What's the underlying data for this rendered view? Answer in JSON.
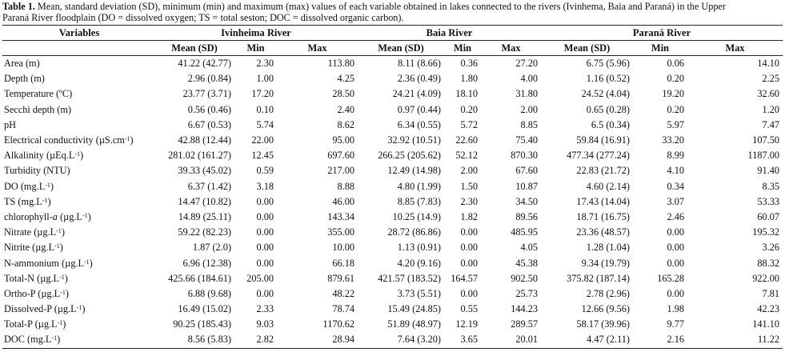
{
  "caption": {
    "label": "Table 1.",
    "text_line1": " Mean, standard deviation (SD), minimum (min) and maximum (max) values of each variable obtained in lakes connected to the rivers (Ivinhema, Baia and Paraná) in the Upper",
    "text_line2": "Paraná River floodplain (DO = dissolved oxygen; TS = total seston; DOC = dissolved organic carbon)."
  },
  "header": {
    "variables": "Variables",
    "rivers": [
      "Ivinheima River",
      "Baia River",
      "Paraná River"
    ],
    "mean_sd": "Mean (SD)",
    "min": "Min",
    "max": "Max"
  },
  "rows": [
    {
      "label": "Area (m)",
      "unit_sup": "",
      "ivinheima": {
        "mean_sd": "41.22 (42.77)",
        "min": "2.30",
        "max": "113.80"
      },
      "baia": {
        "mean_sd": "8.11 (8.66)",
        "min": "0.36",
        "max": "27.20"
      },
      "parana": {
        "mean_sd": "6.75 (5.96)",
        "min": "0.06",
        "max": "14.10"
      }
    },
    {
      "label": "Depth (m)",
      "unit_sup": "",
      "ivinheima": {
        "mean_sd": "2.96 (0.84)",
        "min": "1.00",
        "max": "4.25"
      },
      "baia": {
        "mean_sd": "2.36 (0.49)",
        "min": "1.80",
        "max": "4.00"
      },
      "parana": {
        "mean_sd": "1.16 (0.52)",
        "min": "0.20",
        "max": "2.25"
      }
    },
    {
      "label": "Temperature (ºC)",
      "unit_sup": "",
      "ivinheima": {
        "mean_sd": "23.77 (3.71)",
        "min": "17.20",
        "max": "28.50"
      },
      "baia": {
        "mean_sd": "24.21 (4.09)",
        "min": "18.10",
        "max": "31.80"
      },
      "parana": {
        "mean_sd": "24.52 (4.04)",
        "min": "19.20",
        "max": "32.60"
      }
    },
    {
      "label": "Secchi depth (m)",
      "unit_sup": "",
      "ivinheima": {
        "mean_sd": "0.56 (0.46)",
        "min": "0.10",
        "max": "2.40"
      },
      "baia": {
        "mean_sd": "0.97 (0.44)",
        "min": "0.20",
        "max": "2.00"
      },
      "parana": {
        "mean_sd": "0.65 (0.28)",
        "min": "0.20",
        "max": "1.20"
      }
    },
    {
      "label": "pH",
      "unit_sup": "",
      "ivinheima": {
        "mean_sd": "6.67 (0.53)",
        "min": "5.74",
        "max": "8.62"
      },
      "baia": {
        "mean_sd": "6.34 (0.55)",
        "min": "5.72",
        "max": "8.85"
      },
      "parana": {
        "mean_sd": "6.5 (0.34)",
        "min": "5.97",
        "max": "7.47"
      }
    },
    {
      "label": "Electrical conductivity (µS.cm",
      "unit_sup": "-1",
      "label_end": ")",
      "ivinheima": {
        "mean_sd": "42.88 (12.44)",
        "min": "22.00",
        "max": "95.00"
      },
      "baia": {
        "mean_sd": "32.92 (10.51)",
        "min": "22.60",
        "max": "75.40"
      },
      "parana": {
        "mean_sd": "59.84 (16.91)",
        "min": "33.20",
        "max": "107.50"
      }
    },
    {
      "label": "Alkalinity (µEq.L",
      "unit_sup": "-1",
      "label_end": ")",
      "ivinheima": {
        "mean_sd": "281.02 (161.27)",
        "min": "12.45",
        "max": "697.60"
      },
      "baia": {
        "mean_sd": "266.25 (205.62)",
        "min": "52.12",
        "max": "870.30"
      },
      "parana": {
        "mean_sd": "477.34 (277.24)",
        "min": "8.99",
        "max": "1187.00"
      }
    },
    {
      "label": "Turbidity (NTU)",
      "unit_sup": "",
      "ivinheima": {
        "mean_sd": "39.33 (45.02)",
        "min": "0.59",
        "max": "217.00"
      },
      "baia": {
        "mean_sd": "12.49 (14.98)",
        "min": "2.00",
        "max": "67.60"
      },
      "parana": {
        "mean_sd": "22.83 (21.72)",
        "min": "4.10",
        "max": "91.40"
      }
    },
    {
      "label": "DO (mg.L",
      "unit_sup": "-1",
      "label_end": ")",
      "ivinheima": {
        "mean_sd": "6.37 (1.42)",
        "min": "3.18",
        "max": "8.88"
      },
      "baia": {
        "mean_sd": "4.80 (1.99)",
        "min": "1.50",
        "max": "10.87"
      },
      "parana": {
        "mean_sd": "4.60 (2.14)",
        "min": "0.34",
        "max": "8.35"
      }
    },
    {
      "label": "TS (mg.L",
      "unit_sup": "-1",
      "label_end": ")",
      "ivinheima": {
        "mean_sd": "14.47 (10.82)",
        "min": "0.00",
        "max": "46.00"
      },
      "baia": {
        "mean_sd": "8.85 (7.83)",
        "min": "2.30",
        "max": "34.50"
      },
      "parana": {
        "mean_sd": "17.43 (14.04)",
        "min": "3.07",
        "max": "53.33"
      }
    },
    {
      "label": "chlorophyll-",
      "label_italic": "a",
      "label_rest": " (µg.L",
      "unit_sup": "-1",
      "label_end": ")",
      "ivinheima": {
        "mean_sd": "14.89 (25.11)",
        "min": "0.00",
        "max": "143.34"
      },
      "baia": {
        "mean_sd": "10.25 (14.9)",
        "min": "1.82",
        "max": "89.56"
      },
      "parana": {
        "mean_sd": "18.71 (16.75)",
        "min": "2.46",
        "max": "60.07"
      }
    },
    {
      "label": "Nitrate (µg.L",
      "unit_sup": "-1",
      "label_end": ")",
      "ivinheima": {
        "mean_sd": "59.22 (82.23)",
        "min": "0.00",
        "max": "355.00"
      },
      "baia": {
        "mean_sd": "28.72 (86.86)",
        "min": "0.00",
        "max": "485.95"
      },
      "parana": {
        "mean_sd": "23.36 (48.57)",
        "min": "0.00",
        "max": "195.32"
      }
    },
    {
      "label": "Nitrite (µg.L",
      "unit_sup": "-1",
      "label_end": ")",
      "ivinheima": {
        "mean_sd": "1.87 (2.0)",
        "min": "0.00",
        "max": "10.00"
      },
      "baia": {
        "mean_sd": "1.13 (0.91)",
        "min": "0.00",
        "max": "4.05"
      },
      "parana": {
        "mean_sd": "1.28 (1.04)",
        "min": "0.00",
        "max": "3.26"
      }
    },
    {
      "label": "N-ammonium (µg.L",
      "unit_sup": "-1",
      "label_end": ")",
      "ivinheima": {
        "mean_sd": "6.96 (12.38)",
        "min": "0.00",
        "max": "66.18"
      },
      "baia": {
        "mean_sd": "4.20 (9.16)",
        "min": "0.00",
        "max": "45.38"
      },
      "parana": {
        "mean_sd": "9.34 (19.79)",
        "min": "0.00",
        "max": "88.32"
      }
    },
    {
      "label": "Total-N (µg.L",
      "unit_sup": "-1",
      "label_end": ")",
      "ivinheima": {
        "mean_sd": "425.66 (184.61)",
        "min": "205.00",
        "max": "879.61"
      },
      "baia": {
        "mean_sd": "421.57 (183.52)",
        "min": "164.57",
        "max": "902.50"
      },
      "parana": {
        "mean_sd": "375.82 (187.14)",
        "min": "165.28",
        "max": "922.00"
      }
    },
    {
      "label": "Ortho-P (µg.L",
      "unit_sup": "-1",
      "label_end": ")",
      "ivinheima": {
        "mean_sd": "6.88 (9.68)",
        "min": "0.00",
        "max": "48.22"
      },
      "baia": {
        "mean_sd": "3.73 (5.51)",
        "min": "0.00",
        "max": "25.73"
      },
      "parana": {
        "mean_sd": "2.78 (2.96)",
        "min": "0.00",
        "max": "7.81"
      }
    },
    {
      "label": "Dissolved-P (µg.L",
      "unit_sup": "-1",
      "label_end": ")",
      "ivinheima": {
        "mean_sd": "16.49 (15.02)",
        "min": "2.33",
        "max": "78.74"
      },
      "baia": {
        "mean_sd": "15.49 (24.85)",
        "min": "0.55",
        "max": "144.23"
      },
      "parana": {
        "mean_sd": "12.66 (9.56)",
        "min": "1.98",
        "max": "42.23"
      }
    },
    {
      "label": "Total-P (µg.L",
      "unit_sup": "-1",
      "label_end": ")",
      "ivinheima": {
        "mean_sd": "90.25 (185.43)",
        "min": "9.03",
        "max": "1170.62"
      },
      "baia": {
        "mean_sd": "51.89 (48.97)",
        "min": "12.19",
        "max": "289.57"
      },
      "parana": {
        "mean_sd": "58.17 (39.96)",
        "min": "9.77",
        "max": "141.10"
      }
    },
    {
      "label": "DOC (mg.L",
      "unit_sup": "-1",
      "label_end": ")",
      "ivinheima": {
        "mean_sd": "8.56 (5.83)",
        "min": "2.82",
        "max": "28.94"
      },
      "baia": {
        "mean_sd": "7.64 (3.20)",
        "min": "3.65",
        "max": "20.01"
      },
      "parana": {
        "mean_sd": "4.47 (2.11)",
        "min": "2.16",
        "max": "11.22"
      }
    }
  ]
}
